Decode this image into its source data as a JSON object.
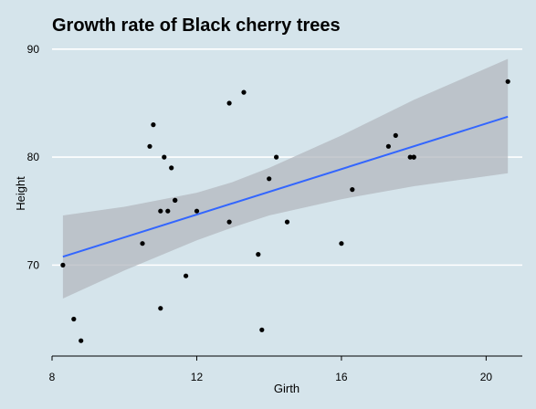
{
  "chart_data": {
    "type": "scatter",
    "title": "Growth rate of Black cherry trees",
    "xlabel": "Girth",
    "ylabel": "Height",
    "xlim": [
      8.0,
      21.0
    ],
    "ylim": [
      62.0,
      91.0
    ],
    "x_ticks": [
      8,
      12,
      16,
      20
    ],
    "y_ticks": [
      70,
      80,
      90
    ],
    "grid": "horizontal",
    "colors": {
      "background": "#d5e4eb",
      "gridline": "#ffffff",
      "point": "#000000",
      "fit_line": "#3366ff",
      "ribbon": "#b3b8bf"
    },
    "series": [
      {
        "values": [
          {
            "x": 8.3,
            "y": 70
          },
          {
            "x": 8.6,
            "y": 65
          },
          {
            "x": 8.8,
            "y": 63
          },
          {
            "x": 10.5,
            "y": 72
          },
          {
            "x": 10.7,
            "y": 81
          },
          {
            "x": 10.8,
            "y": 83
          },
          {
            "x": 11.0,
            "y": 66
          },
          {
            "x": 11.0,
            "y": 75
          },
          {
            "x": 11.1,
            "y": 80
          },
          {
            "x": 11.2,
            "y": 75
          },
          {
            "x": 11.3,
            "y": 79
          },
          {
            "x": 11.4,
            "y": 76
          },
          {
            "x": 11.4,
            "y": 76
          },
          {
            "x": 11.7,
            "y": 69
          },
          {
            "x": 12.0,
            "y": 75
          },
          {
            "x": 12.9,
            "y": 74
          },
          {
            "x": 12.9,
            "y": 85
          },
          {
            "x": 13.3,
            "y": 86
          },
          {
            "x": 13.7,
            "y": 71
          },
          {
            "x": 13.8,
            "y": 64
          },
          {
            "x": 14.0,
            "y": 78
          },
          {
            "x": 14.2,
            "y": 80
          },
          {
            "x": 14.5,
            "y": 74
          },
          {
            "x": 16.0,
            "y": 72
          },
          {
            "x": 16.3,
            "y": 77
          },
          {
            "x": 17.3,
            "y": 81
          },
          {
            "x": 17.5,
            "y": 82
          },
          {
            "x": 17.9,
            "y": 80
          },
          {
            "x": 18.0,
            "y": 80
          },
          {
            "x": 18.0,
            "y": 80
          },
          {
            "x": 20.6,
            "y": 87
          }
        ]
      }
    ],
    "trend": {
      "method": "linear",
      "intercept": 62.03,
      "slope": 1.054,
      "confidence_band": [
        {
          "x": 8.3,
          "lower": 66.9,
          "upper": 74.6
        },
        {
          "x": 10.0,
          "lower": 69.5,
          "upper": 75.4
        },
        {
          "x": 12.0,
          "lower": 72.3,
          "upper": 76.7
        },
        {
          "x": 13.0,
          "lower": 73.5,
          "upper": 77.7
        },
        {
          "x": 14.0,
          "lower": 74.6,
          "upper": 79.0
        },
        {
          "x": 16.0,
          "lower": 76.1,
          "upper": 82.0
        },
        {
          "x": 18.0,
          "lower": 77.3,
          "upper": 85.3
        },
        {
          "x": 20.6,
          "lower": 78.5,
          "upper": 89.1
        }
      ]
    }
  }
}
